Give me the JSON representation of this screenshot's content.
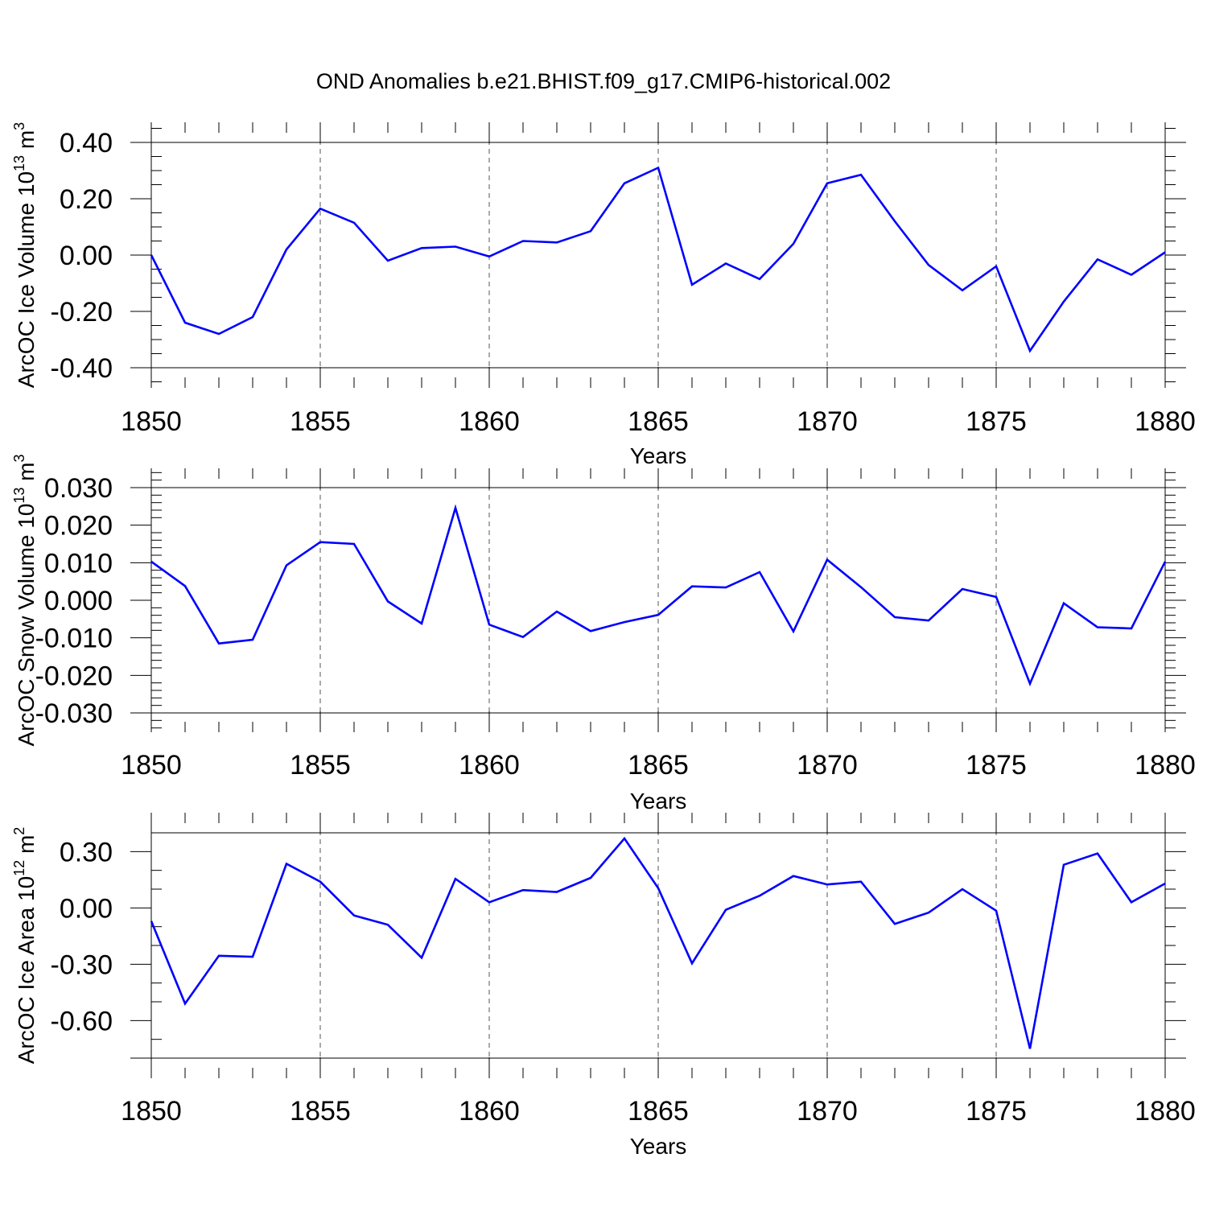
{
  "title": "OND Anomalies b.e21.BHIST.f09_g17.CMIP6-historical.002",
  "chart_data": [
    {
      "type": "line",
      "xlabel": "Years",
      "ylabel": "ArcOC Ice Volume 10",
      "ylabel_exp": "13",
      "ylabel_unit": " m",
      "ylabel_unit_exp": "3",
      "xlim": [
        1850,
        1880
      ],
      "ylim": [
        -0.4,
        0.4
      ],
      "xticks": [
        1850,
        1855,
        1860,
        1865,
        1870,
        1875,
        1880
      ],
      "xtick_labels": [
        "1850",
        "1855",
        "1860",
        "1865",
        "1870",
        "1875",
        "1880"
      ],
      "yticks": [
        -0.4,
        -0.2,
        0.0,
        0.2,
        0.4
      ],
      "ytick_labels": [
        "-0.40",
        "-0.20",
        "0.00",
        "0.20",
        "0.40"
      ],
      "y_minor_step": 0.05,
      "grid": "vertical dashed at major x ticks",
      "series": [
        {
          "name": "Ice Volume",
          "color": "#0000ff",
          "x": [
            1850,
            1851,
            1852,
            1853,
            1854,
            1855,
            1856,
            1857,
            1858,
            1859,
            1860,
            1861,
            1862,
            1863,
            1864,
            1865,
            1866,
            1867,
            1868,
            1869,
            1870,
            1871,
            1872,
            1873,
            1874,
            1875,
            1876,
            1877,
            1878,
            1879,
            1880
          ],
          "values": [
            0.0,
            -0.24,
            -0.28,
            -0.22,
            0.02,
            0.165,
            0.115,
            -0.02,
            0.025,
            0.03,
            -0.005,
            0.05,
            0.045,
            0.085,
            0.255,
            0.31,
            -0.105,
            -0.03,
            -0.085,
            0.04,
            0.255,
            0.285,
            0.12,
            -0.035,
            -0.125,
            -0.04,
            -0.34,
            -0.165,
            -0.015,
            -0.07,
            0.01
          ]
        }
      ]
    },
    {
      "type": "line",
      "xlabel": "Years",
      "ylabel": "ArcOC Snow Volume 10",
      "ylabel_exp": "13",
      "ylabel_unit": " m",
      "ylabel_unit_exp": "3",
      "xlim": [
        1850,
        1880
      ],
      "ylim": [
        -0.03,
        0.03
      ],
      "xticks": [
        1850,
        1855,
        1860,
        1865,
        1870,
        1875,
        1880
      ],
      "xtick_labels": [
        "1850",
        "1855",
        "1860",
        "1865",
        "1870",
        "1875",
        "1880"
      ],
      "yticks": [
        -0.03,
        -0.02,
        -0.01,
        0.0,
        0.01,
        0.02,
        0.03
      ],
      "ytick_labels": [
        "-0.030",
        "-0.020",
        "-0.010",
        "0.000",
        "0.010",
        "0.020",
        "0.030"
      ],
      "y_minor_step": 0.002,
      "grid": "vertical dashed at major x ticks",
      "series": [
        {
          "name": "Snow Volume",
          "color": "#0000ff",
          "x": [
            1850,
            1851,
            1852,
            1853,
            1854,
            1855,
            1856,
            1857,
            1858,
            1859,
            1860,
            1861,
            1862,
            1863,
            1864,
            1865,
            1866,
            1867,
            1868,
            1869,
            1870,
            1871,
            1872,
            1873,
            1874,
            1875,
            1876,
            1877,
            1878,
            1879,
            1880
          ],
          "values": [
            0.0103,
            0.0038,
            -0.0115,
            -0.0105,
            0.0093,
            0.0155,
            0.015,
            -0.0003,
            -0.0062,
            0.0246,
            -0.0065,
            -0.0098,
            -0.003,
            -0.0082,
            -0.0058,
            -0.0039,
            0.0037,
            0.0034,
            0.0075,
            -0.0083,
            0.0108,
            0.0035,
            -0.0045,
            -0.0054,
            0.003,
            0.0009,
            -0.0222,
            -0.0008,
            -0.0072,
            -0.0075,
            0.0103
          ]
        }
      ]
    },
    {
      "type": "line",
      "xlabel": "Years",
      "ylabel": "ArcOC Ice Area 10",
      "ylabel_exp": "12",
      "ylabel_unit": " m",
      "ylabel_unit_exp": "2",
      "xlim": [
        1850,
        1880
      ],
      "ylim": [
        -0.8,
        0.4
      ],
      "xticks": [
        1850,
        1855,
        1860,
        1865,
        1870,
        1875,
        1880
      ],
      "xtick_labels": [
        "1850",
        "1855",
        "1860",
        "1865",
        "1870",
        "1875",
        "1880"
      ],
      "yticks": [
        -0.6,
        -0.3,
        0.0,
        0.3
      ],
      "ytick_labels": [
        "-0.60",
        "-0.30",
        "0.00",
        "0.30"
      ],
      "y_minor_step": 0.1,
      "grid": "vertical dashed at major x ticks",
      "series": [
        {
          "name": "Ice Area",
          "color": "#0000ff",
          "x": [
            1850,
            1851,
            1852,
            1853,
            1854,
            1855,
            1856,
            1857,
            1858,
            1859,
            1860,
            1861,
            1862,
            1863,
            1864,
            1865,
            1866,
            1867,
            1868,
            1869,
            1870,
            1871,
            1872,
            1873,
            1874,
            1875,
            1876,
            1877,
            1878,
            1879,
            1880
          ],
          "values": [
            -0.07,
            -0.51,
            -0.255,
            -0.26,
            0.235,
            0.14,
            -0.04,
            -0.09,
            -0.265,
            0.155,
            0.03,
            0.095,
            0.085,
            0.16,
            0.37,
            0.105,
            -0.295,
            -0.01,
            0.065,
            0.17,
            0.125,
            0.14,
            -0.085,
            -0.025,
            0.1,
            -0.015,
            -0.75,
            0.23,
            0.29,
            0.03,
            0.13
          ]
        }
      ]
    }
  ]
}
